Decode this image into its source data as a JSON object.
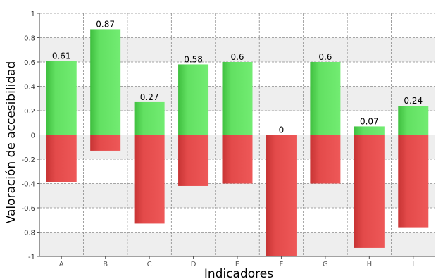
{
  "chart_data": {
    "type": "bar",
    "title": "",
    "xlabel": "Indicadores",
    "ylabel": "Valoración de accesibilidad",
    "ylim": [
      -1,
      1
    ],
    "yticks": [
      "1",
      "0.8",
      "0.6",
      "0.4",
      "0.2",
      "0",
      "-0.2",
      "-0.4",
      "-0.6",
      "-0.8",
      "-1"
    ],
    "categories": [
      "A",
      "B",
      "C",
      "D",
      "E",
      "F",
      "G",
      "H",
      "I"
    ],
    "series": [
      {
        "name": "",
        "color": "#5ee05e",
        "values": [
          0.61,
          0.87,
          0.27,
          0.58,
          0.6,
          0,
          0.6,
          0.07,
          0.24
        ]
      },
      {
        "name": "",
        "color": "#e34848",
        "values": [
          -0.39,
          -0.13,
          -0.73,
          -0.42,
          -0.4,
          -1,
          -0.4,
          -0.93,
          -0.76
        ]
      }
    ],
    "data_labels": [
      "0.61",
      "0.87",
      "0.27",
      "0.58",
      "0.6",
      "0",
      "0.6",
      "0.07",
      "0.24"
    ],
    "grid": true,
    "legend": "none"
  }
}
